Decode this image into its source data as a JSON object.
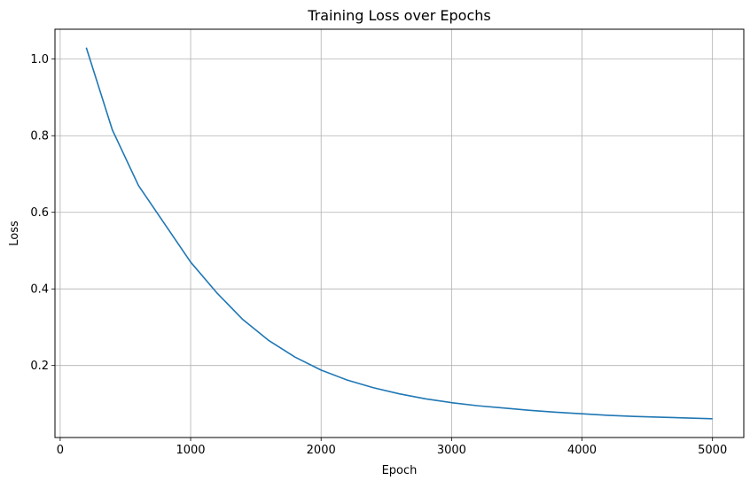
{
  "chart_data": {
    "type": "line",
    "title": "Training Loss over Epochs",
    "xlabel": "Epoch",
    "ylabel": "Loss",
    "xlim": [
      -40,
      5240
    ],
    "ylim": [
      0.012,
      1.078
    ],
    "xticks": [
      0,
      1000,
      2000,
      3000,
      4000,
      5000
    ],
    "xtick_labels": [
      "0",
      "1000",
      "2000",
      "3000",
      "4000",
      "5000"
    ],
    "yticks": [
      0.2,
      0.4,
      0.6,
      0.8,
      1.0
    ],
    "ytick_labels": [
      "0.2",
      "0.4",
      "0.6",
      "0.8",
      "1.0"
    ],
    "grid": true,
    "series": [
      {
        "color": "#1f77b4",
        "x": [
          200,
          400,
          600,
          800,
          1000,
          1200,
          1400,
          1600,
          1800,
          2000,
          2200,
          2400,
          2600,
          2800,
          3000,
          3200,
          3400,
          3600,
          3800,
          4000,
          4200,
          4400,
          4600,
          4800,
          5000
        ],
        "y": [
          1.03,
          0.815,
          0.67,
          0.57,
          0.47,
          0.39,
          0.32,
          0.265,
          0.222,
          0.188,
          0.162,
          0.142,
          0.126,
          0.113,
          0.103,
          0.095,
          0.089,
          0.083,
          0.078,
          0.074,
          0.07,
          0.067,
          0.065,
          0.063,
          0.061
        ]
      }
    ]
  }
}
